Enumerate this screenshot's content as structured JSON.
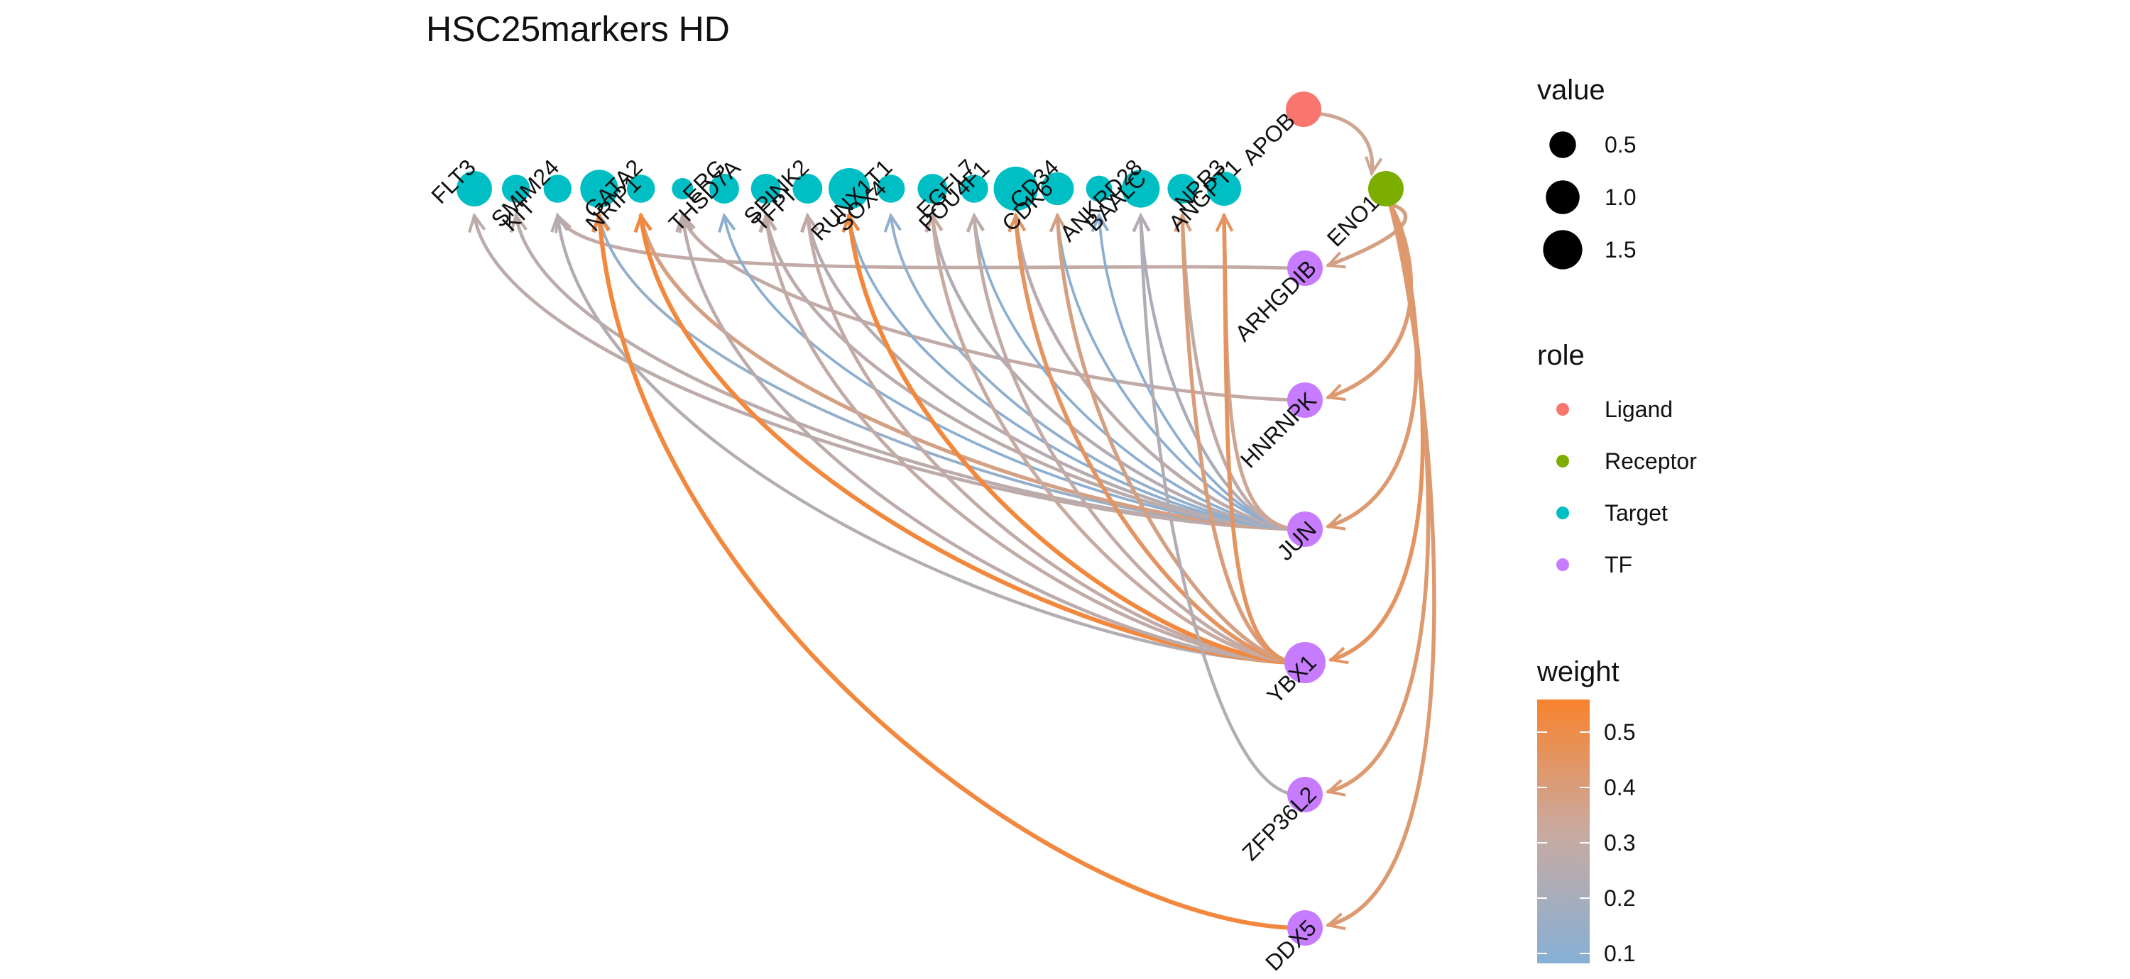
{
  "title": "HSC25markers HD",
  "colors": {
    "Ligand": "#F8766D",
    "Receptor": "#7CAE00",
    "Target": "#00BFC4",
    "TF": "#C77CFF",
    "weight_low": "#86B0D6",
    "weight_mid": "#C9AAA0",
    "weight_high": "#F8832E"
  },
  "nodes": [
    {
      "id": "APOB",
      "role": "Ligand",
      "value": 1.0
    },
    {
      "id": "ENO1",
      "role": "Receptor",
      "value": 1.0
    },
    {
      "id": "FLT3",
      "role": "Target",
      "value": 1.0
    },
    {
      "id": "KIT",
      "role": "Target",
      "value": 0.5
    },
    {
      "id": "SMIM24",
      "role": "Target",
      "value": 0.5
    },
    {
      "id": "NRIP1",
      "role": "Target",
      "value": 1.2
    },
    {
      "id": "GATA2",
      "role": "Target",
      "value": 0.5
    },
    {
      "id": "THSD7A",
      "role": "Target",
      "value": 0.2
    },
    {
      "id": "ERG",
      "role": "Target",
      "value": 0.6
    },
    {
      "id": "TFPI",
      "role": "Target",
      "value": 0.6
    },
    {
      "id": "SPINK2",
      "role": "Target",
      "value": 0.6
    },
    {
      "id": "SOX4",
      "role": "Target",
      "value": 1.5
    },
    {
      "id": "RUNX1T1",
      "role": "Target",
      "value": 0.5
    },
    {
      "id": "POU4F1",
      "role": "Target",
      "value": 0.6
    },
    {
      "id": "EGFL7",
      "role": "Target",
      "value": 0.5
    },
    {
      "id": "CDK6",
      "role": "Target",
      "value": 1.8
    },
    {
      "id": "CD34",
      "role": "Target",
      "value": 0.8
    },
    {
      "id": "BAALC",
      "role": "Target",
      "value": 0.4
    },
    {
      "id": "ANKRD28",
      "role": "Target",
      "value": 1.2
    },
    {
      "id": "ANGPT1",
      "role": "Target",
      "value": 0.6
    },
    {
      "id": "NPR3",
      "role": "Target",
      "value": 0.9
    },
    {
      "id": "ARHGDIB",
      "role": "TF",
      "value": 1.0
    },
    {
      "id": "HNRNPK",
      "role": "TF",
      "value": 1.0
    },
    {
      "id": "JUN",
      "role": "TF",
      "value": 1.0
    },
    {
      "id": "YBX1",
      "role": "TF",
      "value": 1.5
    },
    {
      "id": "ZFP36L2",
      "role": "TF",
      "value": 1.0
    },
    {
      "id": "DDX5",
      "role": "TF",
      "value": 1.0
    }
  ],
  "edges": [
    {
      "from": "APOB",
      "to": "ENO1",
      "weight": 0.35
    },
    {
      "from": "ENO1",
      "to": "ARHGDIB",
      "weight": 0.38
    },
    {
      "from": "ENO1",
      "to": "HNRNPK",
      "weight": 0.42
    },
    {
      "from": "ENO1",
      "to": "JUN",
      "weight": 0.42
    },
    {
      "from": "ENO1",
      "to": "YBX1",
      "weight": 0.45
    },
    {
      "from": "ENO1",
      "to": "ZFP36L2",
      "weight": 0.42
    },
    {
      "from": "ENO1",
      "to": "DDX5",
      "weight": 0.42
    },
    {
      "from": "ARHGDIB",
      "to": "SMIM24",
      "weight": 0.3
    },
    {
      "from": "HNRNPK",
      "to": "THSD7A",
      "weight": 0.3
    },
    {
      "from": "JUN",
      "to": "FLT3",
      "weight": 0.28
    },
    {
      "from": "JUN",
      "to": "KIT",
      "weight": 0.28
    },
    {
      "from": "JUN",
      "to": "NRIP1",
      "weight": 0.15
    },
    {
      "from": "JUN",
      "to": "GATA2",
      "weight": 0.38
    },
    {
      "from": "JUN",
      "to": "ERG",
      "weight": 0.12
    },
    {
      "from": "JUN",
      "to": "TFPI",
      "weight": 0.28
    },
    {
      "from": "JUN",
      "to": "SPINK2",
      "weight": 0.26
    },
    {
      "from": "JUN",
      "to": "SOX4",
      "weight": 0.12
    },
    {
      "from": "JUN",
      "to": "RUNX1T1",
      "weight": 0.14
    },
    {
      "from": "JUN",
      "to": "POU4F1",
      "weight": 0.25
    },
    {
      "from": "JUN",
      "to": "EGFL7",
      "weight": 0.12
    },
    {
      "from": "JUN",
      "to": "CDK6",
      "weight": 0.28
    },
    {
      "from": "JUN",
      "to": "CD34",
      "weight": 0.12
    },
    {
      "from": "JUN",
      "to": "BAALC",
      "weight": 0.12
    },
    {
      "from": "JUN",
      "to": "ANKRD28",
      "weight": 0.22
    },
    {
      "from": "JUN",
      "to": "ANGPT1",
      "weight": 0.3
    },
    {
      "from": "JUN",
      "to": "NPR3",
      "weight": 0.35
    },
    {
      "from": "YBX1",
      "to": "SMIM24",
      "weight": 0.25
    },
    {
      "from": "YBX1",
      "to": "GATA2",
      "weight": 0.52
    },
    {
      "from": "YBX1",
      "to": "THSD7A",
      "weight": 0.28
    },
    {
      "from": "YBX1",
      "to": "TFPI",
      "weight": 0.3
    },
    {
      "from": "YBX1",
      "to": "SPINK2",
      "weight": 0.3
    },
    {
      "from": "YBX1",
      "to": "SOX4",
      "weight": 0.52
    },
    {
      "from": "YBX1",
      "to": "POU4F1",
      "weight": 0.32
    },
    {
      "from": "YBX1",
      "to": "EGFL7",
      "weight": 0.3
    },
    {
      "from": "YBX1",
      "to": "CDK6",
      "weight": 0.45
    },
    {
      "from": "YBX1",
      "to": "CD34",
      "weight": 0.38
    },
    {
      "from": "YBX1",
      "to": "ANGPT1",
      "weight": 0.4
    },
    {
      "from": "YBX1",
      "to": "NPR3",
      "weight": 0.45
    },
    {
      "from": "ZFP36L2",
      "to": "ANKRD28",
      "weight": 0.25
    },
    {
      "from": "DDX5",
      "to": "NRIP1",
      "weight": 0.52
    }
  ],
  "legend": {
    "value_title": "value",
    "value_items": [
      {
        "label": "0.5",
        "value": 0.5
      },
      {
        "label": "1.0",
        "value": 1.0
      },
      {
        "label": "1.5",
        "value": 1.5
      }
    ],
    "role_title": "role",
    "role_items": [
      {
        "label": "Ligand"
      },
      {
        "label": "Receptor"
      },
      {
        "label": "Target"
      },
      {
        "label": "TF"
      }
    ],
    "weight_title": "weight",
    "weight_ticks": [
      "0.5",
      "0.4",
      "0.3",
      "0.2",
      "0.1"
    ]
  }
}
